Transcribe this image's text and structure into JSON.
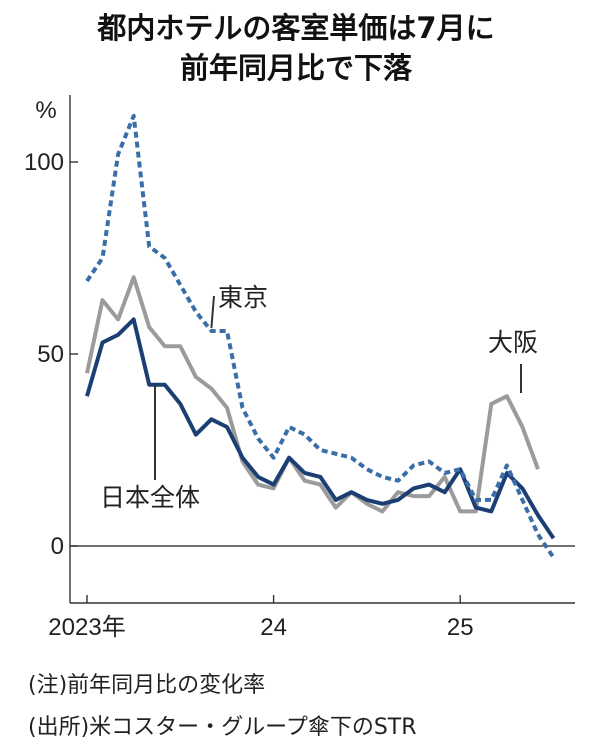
{
  "title_line1": "都内ホテルの客室単価は7月に",
  "title_line2": "前年同月比で下落",
  "note": "(注)前年同月比の変化率",
  "source": "(出所)米コスター・グループ傘下のSTR",
  "chart_data": {
    "type": "line",
    "title": "都内ホテルの客室単価は7月に前年同月比で下落",
    "y_unit": "%",
    "ylim": [
      -12,
      115
    ],
    "y_ticks": [
      0,
      50,
      100
    ],
    "y_tick_labels": [
      "0",
      "50",
      "100"
    ],
    "x_ticks": [
      0,
      12,
      24
    ],
    "x_tick_labels": [
      "2023年",
      "24",
      "25"
    ],
    "x_months": [
      "2023-01",
      "2023-02",
      "2023-03",
      "2023-04",
      "2023-05",
      "2023-06",
      "2023-07",
      "2023-08",
      "2023-09",
      "2023-10",
      "2023-11",
      "2023-12",
      "2024-01",
      "2024-02",
      "2024-03",
      "2024-04",
      "2024-05",
      "2024-06",
      "2024-07",
      "2024-08",
      "2024-09",
      "2024-10",
      "2024-11",
      "2024-12",
      "2025-01",
      "2025-02",
      "2025-03",
      "2025-04",
      "2025-05",
      "2025-06",
      "2025-07"
    ],
    "grid": false,
    "series": [
      {
        "name": "東京",
        "color": "#3a6ea8",
        "style": "dashed",
        "values": [
          69,
          75,
          102,
          112,
          78,
          75,
          68,
          61,
          56,
          56,
          36,
          28,
          23,
          31,
          29,
          25,
          24,
          23,
          20,
          18,
          17,
          21,
          22,
          19,
          20,
          12,
          12,
          21,
          12,
          3,
          -3
        ]
      },
      {
        "name": "大阪",
        "color": "#9b9b9b",
        "style": "solid",
        "values": [
          45,
          64,
          59,
          70,
          57,
          52,
          52,
          44,
          41,
          36,
          22,
          16,
          15,
          23,
          17,
          16,
          10,
          14,
          11,
          9,
          14,
          13,
          13,
          18,
          9,
          9,
          37,
          39,
          31,
          20,
          null
        ]
      },
      {
        "name": "日本全体",
        "color": "#1c3f73",
        "style": "solid",
        "values": [
          39,
          53,
          55,
          59,
          42,
          42,
          37,
          29,
          33,
          31,
          23,
          18,
          16,
          23,
          19,
          18,
          12,
          14,
          12,
          11,
          12,
          15,
          16,
          14,
          20,
          10,
          9,
          19,
          15,
          8,
          2
        ]
      }
    ]
  }
}
